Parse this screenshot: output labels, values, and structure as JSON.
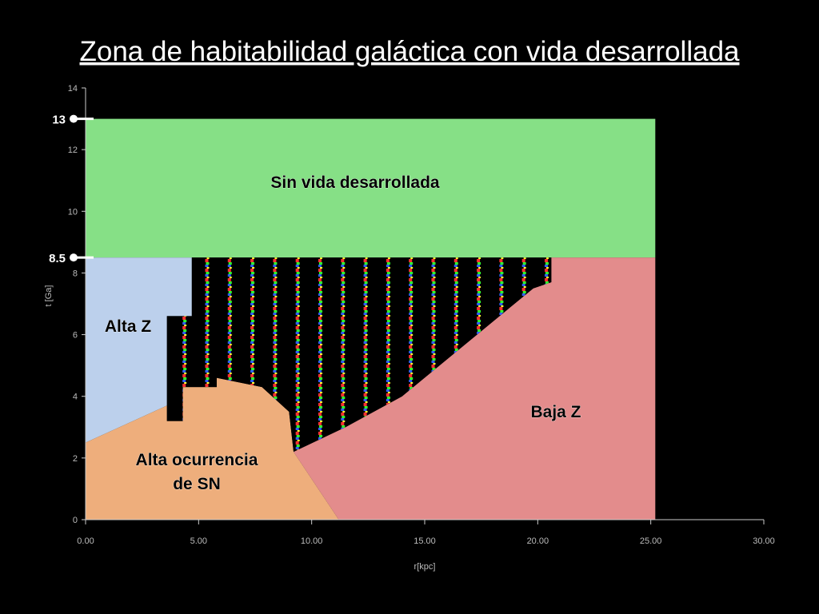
{
  "chart_data": {
    "type": "region",
    "title": "Zona de habitabilidad galáctica con vida desarrollada",
    "x_label": "r[kpc]",
    "y_label": "t [Ga]",
    "xlim": [
      0,
      30
    ],
    "ylim": [
      0,
      14
    ],
    "xticks": [
      {
        "value": 0,
        "label": "0.00"
      },
      {
        "value": 5,
        "label": "5.00"
      },
      {
        "value": 10,
        "label": "10.00"
      },
      {
        "value": 15,
        "label": "15.00"
      },
      {
        "value": 20,
        "label": "20.00"
      },
      {
        "value": 25,
        "label": "25.00"
      },
      {
        "value": 30,
        "label": "30.00"
      }
    ],
    "yticks": [
      0,
      2,
      4,
      6,
      8,
      10,
      12,
      14
    ],
    "markers": [
      13,
      8.5
    ],
    "regions": [
      {
        "name": "Sin vida desarrollada",
        "color": "#86e086",
        "x": [
          0,
          25.2,
          25.2,
          0
        ],
        "y": [
          8.5,
          8.5,
          13,
          13
        ]
      },
      {
        "name": "Alta Z",
        "color": "#bcd0ec",
        "x": [
          0,
          3.6,
          3.6,
          4.7,
          4.7,
          0
        ],
        "y": [
          2.5,
          3.7,
          6.6,
          6.6,
          8.5,
          8.5
        ]
      },
      {
        "name": "Alta ocurrencia\nde SN",
        "color": "#eeae7c",
        "x": [
          0,
          11.2,
          9.2,
          9.0,
          7.8,
          5.8,
          5.8,
          4.3,
          4.3,
          3.6,
          3.6,
          0
        ],
        "y": [
          0,
          0,
          2.2,
          3.5,
          4.3,
          4.6,
          4.3,
          4.3,
          3.2,
          3.2,
          3.7,
          2.5
        ]
      },
      {
        "name": "Baja Z",
        "color": "#e38c8c",
        "x": [
          11.2,
          25.2,
          25.2,
          20.6,
          20.6,
          19.8,
          14,
          11.5,
          9.2
        ],
        "y": [
          0,
          0,
          8.5,
          8.5,
          7.7,
          7.5,
          4,
          3,
          2.2
        ]
      },
      {
        "color": "#000000",
        "x": [
          3.6,
          3.6,
          4.7,
          4.7,
          20.6,
          20.6,
          19.8,
          14,
          11.5,
          9.2,
          9.0,
          7.8,
          5.8,
          5.8,
          4.3,
          4.3
        ],
        "y": [
          3.2,
          6.6,
          6.6,
          8.5,
          8.5,
          7.7,
          7.5,
          4,
          3,
          2.2,
          3.5,
          4.3,
          4.6,
          4.3,
          4.3,
          3.2
        ]
      }
    ]
  }
}
